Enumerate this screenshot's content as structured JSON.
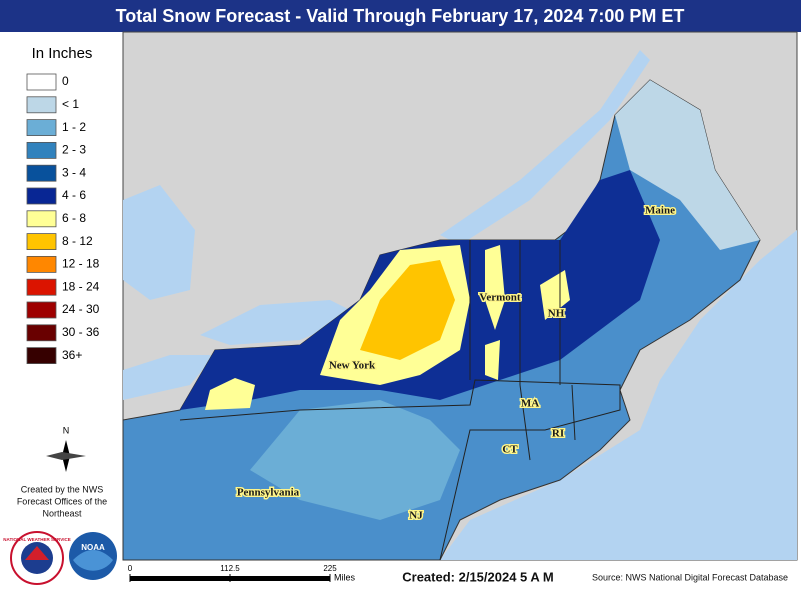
{
  "header": {
    "title": "Total Snow Forecast - Valid Through February 17, 2024 7:00 PM ET"
  },
  "legend": {
    "title": "In Inches",
    "items": [
      {
        "label": "0",
        "color": "#ffffff"
      },
      {
        "label": "< 1",
        "color": "#bdd7e7"
      },
      {
        "label": "1 - 2",
        "color": "#6baed6"
      },
      {
        "label": "2 - 3",
        "color": "#3182bd"
      },
      {
        "label": "3 - 4",
        "color": "#08519c"
      },
      {
        "label": "4 - 6",
        "color": "#082694"
      },
      {
        "label": "6 - 8",
        "color": "#ffff96"
      },
      {
        "label": "8 - 12",
        "color": "#ffc400"
      },
      {
        "label": "12 - 18",
        "color": "#ff8700"
      },
      {
        "label": "18 - 24",
        "color": "#db1400"
      },
      {
        "label": "24 - 30",
        "color": "#9e0000"
      },
      {
        "label": "30 - 36",
        "color": "#690000"
      },
      {
        "label": "36+",
        "color": "#360000"
      }
    ]
  },
  "compass": "N",
  "credit": [
    "Created by the NWS",
    "Forecast Offices of the",
    "Northeast"
  ],
  "logos": {
    "nws": "NATIONAL WEATHER SERVICE",
    "noaa": "NOAA"
  },
  "map": {
    "labels": [
      "Maine",
      "Vermont",
      "NH",
      "New York",
      "MA",
      "CT",
      "RI",
      "NJ",
      "Pennsylvania"
    ]
  },
  "scale_bar": {
    "ticks": [
      0,
      112.5,
      225
    ],
    "unit": "Miles"
  },
  "footer": {
    "created": "Created: 2/15/2024 5 A M",
    "source": "Source: NWS National Digital Forecast Database"
  }
}
